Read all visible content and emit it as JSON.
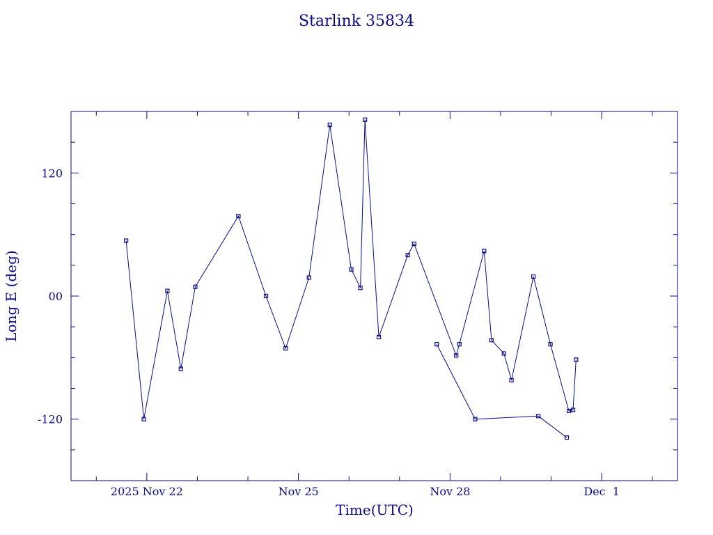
{
  "chart_data": {
    "type": "line",
    "title": "Starlink 35834",
    "xlabel": "Time(UTC)",
    "ylabel": "Long E (deg)",
    "x_ticks": [
      {
        "label": "2025 Nov 22",
        "value": "2025-11-22"
      },
      {
        "label": "Nov 25",
        "value": "2025-11-25"
      },
      {
        "label": "Nov 28",
        "value": "2025-11-28"
      },
      {
        "label": "Dec  1",
        "value": "2025-12-01"
      }
    ],
    "y_ticks": [
      {
        "label": "120",
        "value": 120
      },
      {
        "label": "00",
        "value": 0
      },
      {
        "label": "-120",
        "value": -120
      }
    ],
    "xlim": [
      "2025-11-20 12:00",
      "2025-12-02 12:00"
    ],
    "ylim": [
      -180,
      180
    ],
    "series": [
      {
        "color": "#0a0a8a",
        "x": [
          "2025-11-21 14:10",
          "2025-11-21 22:35",
          "2025-11-22 09:45",
          "2025-11-22 16:10",
          "2025-11-22 23:00",
          "2025-11-23 19:30",
          "2025-11-24 08:35",
          "2025-11-24 17:55",
          "2025-11-25 05:00",
          "2025-11-25 14:55",
          "2025-11-26 01:05",
          "2025-11-26 05:25",
          "2025-11-26 07:35",
          "2025-11-26 14:10",
          "2025-11-27 03:55",
          "2025-11-27 06:55",
          "2025-11-28 02:55",
          "2025-11-28 04:25",
          "2025-11-28 16:10",
          "2025-11-28 19:40",
          "2025-11-29 01:35",
          "2025-11-29 05:10",
          "2025-11-29 15:35",
          "2025-11-29 23:40",
          "2025-11-30 08:25",
          "2025-11-30 10:25",
          "2025-11-30 11:50"
        ],
        "y": [
          54,
          -120,
          5,
          -71,
          9,
          78,
          0,
          -51,
          18,
          167,
          26,
          8,
          172,
          -40,
          40,
          51,
          -58,
          -47,
          44,
          -43,
          -56,
          -82,
          19,
          -47,
          -112,
          -111,
          -62
        ]
      },
      {
        "color": "#0a0a8a",
        "x": [
          "2025-11-27 17:40",
          "2025-11-28 11:55",
          "2025-11-29 17:55",
          "2025-11-30 07:25"
        ],
        "y": [
          -47,
          -120,
          -117,
          -138
        ]
      }
    ],
    "grid": false
  }
}
